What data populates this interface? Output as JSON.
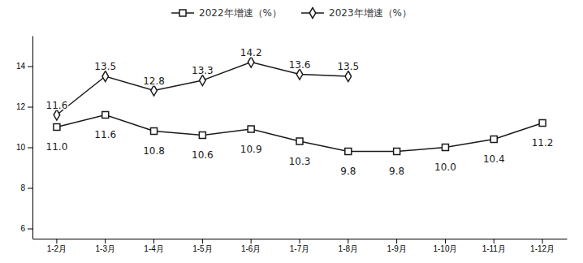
{
  "chart_data": {
    "type": "line",
    "categories": [
      "1-2月",
      "1-3月",
      "1-4月",
      "1-5月",
      "1-6月",
      "1-7月",
      "1-8月",
      "1-9月",
      "1-10月",
      "1-11月",
      "1-12月"
    ],
    "series": [
      {
        "name": "2022年增速（%）",
        "color": "#1a1a1a",
        "marker": "square",
        "values": [
          11.0,
          11.6,
          10.8,
          10.6,
          10.9,
          10.3,
          9.8,
          9.8,
          10.0,
          10.4,
          11.2
        ],
        "value_labels": [
          "11.0",
          "11.6",
          "10.8",
          "10.6",
          "10.9",
          "10.3",
          "9.8",
          "9.8",
          "10.0",
          "10.4",
          "11.2"
        ]
      },
      {
        "name": "2023年增速（%）",
        "color": "#1a1a1a",
        "marker": "diamond",
        "values": [
          11.6,
          13.5,
          12.8,
          13.3,
          14.2,
          13.6,
          13.5,
          null,
          null,
          null,
          null
        ],
        "value_labels": [
          "11.6",
          "13.5",
          "12.8",
          "13.3",
          "14.2",
          "13.6",
          "13.5",
          null,
          null,
          null,
          null
        ]
      }
    ],
    "ylim": [
      5.5,
      15.5
    ],
    "yticks": [
      6,
      8,
      10,
      12,
      14
    ],
    "grid": false,
    "legend": "top",
    "data_labels": true
  }
}
